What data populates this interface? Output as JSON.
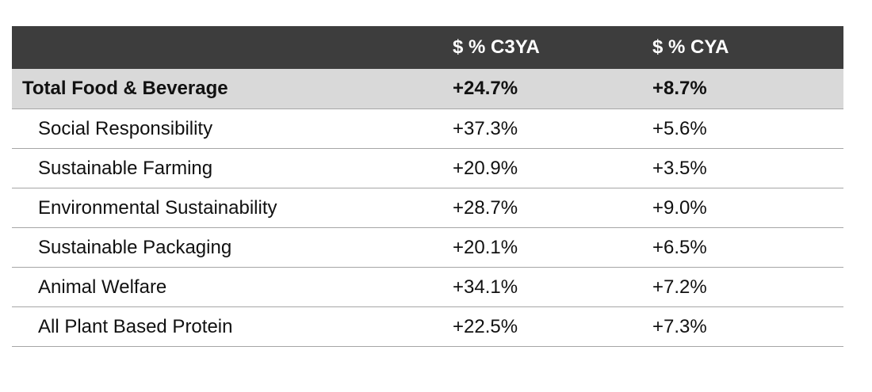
{
  "chart_data": {
    "type": "table",
    "columns": [
      "",
      "$ % C3YA",
      "$ % CYA"
    ],
    "total": {
      "label": "Total Food & Beverage",
      "c3ya": "+24.7%",
      "cya": "+8.7%"
    },
    "rows": [
      {
        "label": "Social Responsibility",
        "c3ya": "+37.3%",
        "cya": "+5.6%"
      },
      {
        "label": "Sustainable Farming",
        "c3ya": "+20.9%",
        "cya": "+3.5%"
      },
      {
        "label": "Environmental Sustainability",
        "c3ya": "+28.7%",
        "cya": "+9.0%"
      },
      {
        "label": "Sustainable Packaging",
        "c3ya": "+20.1%",
        "cya": "+6.5%"
      },
      {
        "label": "Animal Welfare",
        "c3ya": "+34.1%",
        "cya": "+7.2%"
      },
      {
        "label": "All Plant Based Protein",
        "c3ya": "+22.5%",
        "cya": "+7.3%"
      }
    ],
    "colors": {
      "header_bg": "#3d3d3d",
      "header_text": "#ffffff",
      "total_bg": "#d9d9d9",
      "divider": "#a6a6a6"
    }
  }
}
